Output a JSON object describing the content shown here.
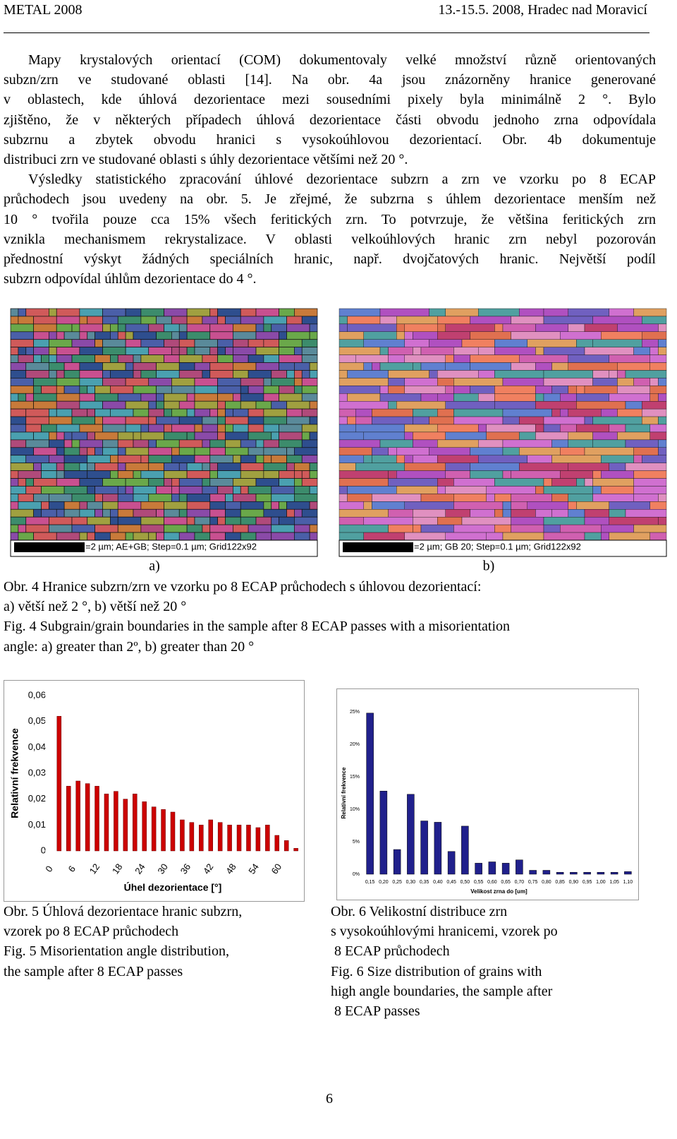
{
  "header": {
    "left": "METAL 2008",
    "right": "13.-15.5. 2008, Hradec nad Moravicí"
  },
  "paragraphs": [
    [
      "Mapy krystalových orientací (COM) dokumentovaly velké množství různě orientovaných",
      "subzn/zrn ve studované oblasti [14]. Na obr. 4a jsou znázorněny hranice generované",
      "v oblastech, kde úhlová dezorientace mezi sousedními pixely byla minimálně 2 °. Bylo",
      "zjištěno, že v některých případech úhlová dezorientace části obvodu jednoho zrna odpovídala",
      "subzrnu a zbytek obvodu hranici s vysokoúhlovou dezorientací. Obr. 4b dokumentuje",
      "distribuci zrn ve studované oblasti s úhly dezorientace většími než 20 °."
    ],
    [
      "Výsledky statistického zpracování úhlové dezorientace subzrn a zrn ve vzorku po 8 ECAP",
      "průchodech jsou  uvedeny na obr. 5. Je zřejmé, že subzrna s úhlem dezorientace menším než",
      "10 ° tvořila pouze cca 15% všech feritických zrn. To potvrzuje, že většina feritických zrn",
      "vznikla mechanismem rekrystalizace. V oblasti velkoúhlových hranic zrn nebyl pozorován",
      "přednostní výskyt žádných speciálních hranic, např. dvojčatových hranic. Největší podíl",
      "subzrn odpovídal úhlům dezorientace do 4 °."
    ]
  ],
  "figure4": {
    "panels": [
      {
        "scale_text": "=2 µm; AE+GB; Step=0.1 µm; Grid122x92",
        "label": "a)"
      },
      {
        "scale_text": "=2 µm; GB 20; Step=0.1 µm; Grid122x92",
        "label": "b)"
      }
    ],
    "caption": [
      "Obr. 4 Hranice subzrn/zrn ve vzorku po 8 ECAP průchodech s úhlovou dezorientací:",
      "a) větší než 2 °, b) větší než 20 °",
      "Fig. 4 Subgrain/grain boundaries in the sample after 8 ECAP passes with a misorientation",
      "angle: a) greater than 2º, b) greater than 20 °"
    ]
  },
  "figure5": {
    "type": "bar",
    "y_label": "Relativní frekvence",
    "x_label": "Úhel dezorientace [°]",
    "color": "#cc0000",
    "x": [
      2.5,
      5,
      7.5,
      10,
      12.5,
      15,
      17.5,
      20,
      22.5,
      25,
      27.5,
      30,
      32.5,
      35,
      37.5,
      40,
      42.5,
      45,
      47.5,
      50,
      52.5,
      55,
      57.5,
      60,
      62.5,
      65
    ],
    "values": [
      0.052,
      0.025,
      0.027,
      0.026,
      0.025,
      0.022,
      0.023,
      0.02,
      0.022,
      0.019,
      0.017,
      0.016,
      0.015,
      0.012,
      0.011,
      0.01,
      0.012,
      0.011,
      0.01,
      0.01,
      0.01,
      0.009,
      0.01,
      0.006,
      0.004,
      0.001
    ],
    "xlim": [
      -1,
      66
    ],
    "xticks": [
      0,
      6,
      12,
      18,
      24,
      30,
      36,
      42,
      48,
      54,
      60
    ],
    "ylim": [
      0,
      0.06
    ],
    "yticks": [
      0,
      {
        "value": 0.01,
        "label": "0,01"
      },
      {
        "value": 0.02,
        "label": "0,02"
      },
      {
        "value": 0.03,
        "label": "0,03"
      },
      {
        "value": 0.04,
        "label": "0,04"
      },
      {
        "value": 0.05,
        "label": "0,05"
      },
      {
        "value": 0.06,
        "label": "0,06"
      }
    ],
    "caption": [
      "Obr. 5 Úhlová dezorientace hranic subzrn,",
      "vzorek po 8 ECAP průchodech",
      "Fig. 5 Misorientation angle distribution,",
      "the sample after 8 ECAP passes"
    ]
  },
  "figure6": {
    "type": "bar",
    "y_label": "Relativní frekvence",
    "x_label": "Velikost zrna do [um]",
    "color": "#20208c",
    "categories": [
      "0,15",
      "0,20",
      "0,25",
      "0,30",
      "0,35",
      "0,40",
      "0,45",
      "0,50",
      "0,55",
      "0,60",
      "0,65",
      "0,70",
      "0,75",
      "0,80",
      "0,85",
      "0,90",
      "0,95",
      "1,00",
      "1,05",
      "1,10"
    ],
    "values": [
      24.8,
      12.8,
      3.8,
      12.3,
      8.2,
      8.0,
      3.5,
      7.4,
      1.7,
      1.9,
      1.7,
      2.2,
      0.6,
      0.6,
      0.3,
      0.3,
      0.3,
      0.3,
      0.3,
      0.4
    ],
    "ylim": [
      0,
      25
    ],
    "yticks": [
      {
        "value": 0,
        "label": "0%"
      },
      {
        "value": 5,
        "label": "5%"
      },
      {
        "value": 10,
        "label": "10%"
      },
      {
        "value": 15,
        "label": "15%"
      },
      {
        "value": 20,
        "label": "20%"
      },
      {
        "value": 25,
        "label": "25%"
      }
    ],
    "caption": [
      "Obr. 6 Velikostní distribuce zrn",
      "s vysokoúhlovými hranicemi, vzorek po",
      " 8 ECAP průchodech",
      "Fig. 6 Size distribution of grains with",
      "high angle boundaries, the sample after",
      " 8 ECAP passes"
    ]
  },
  "page_number": "6"
}
